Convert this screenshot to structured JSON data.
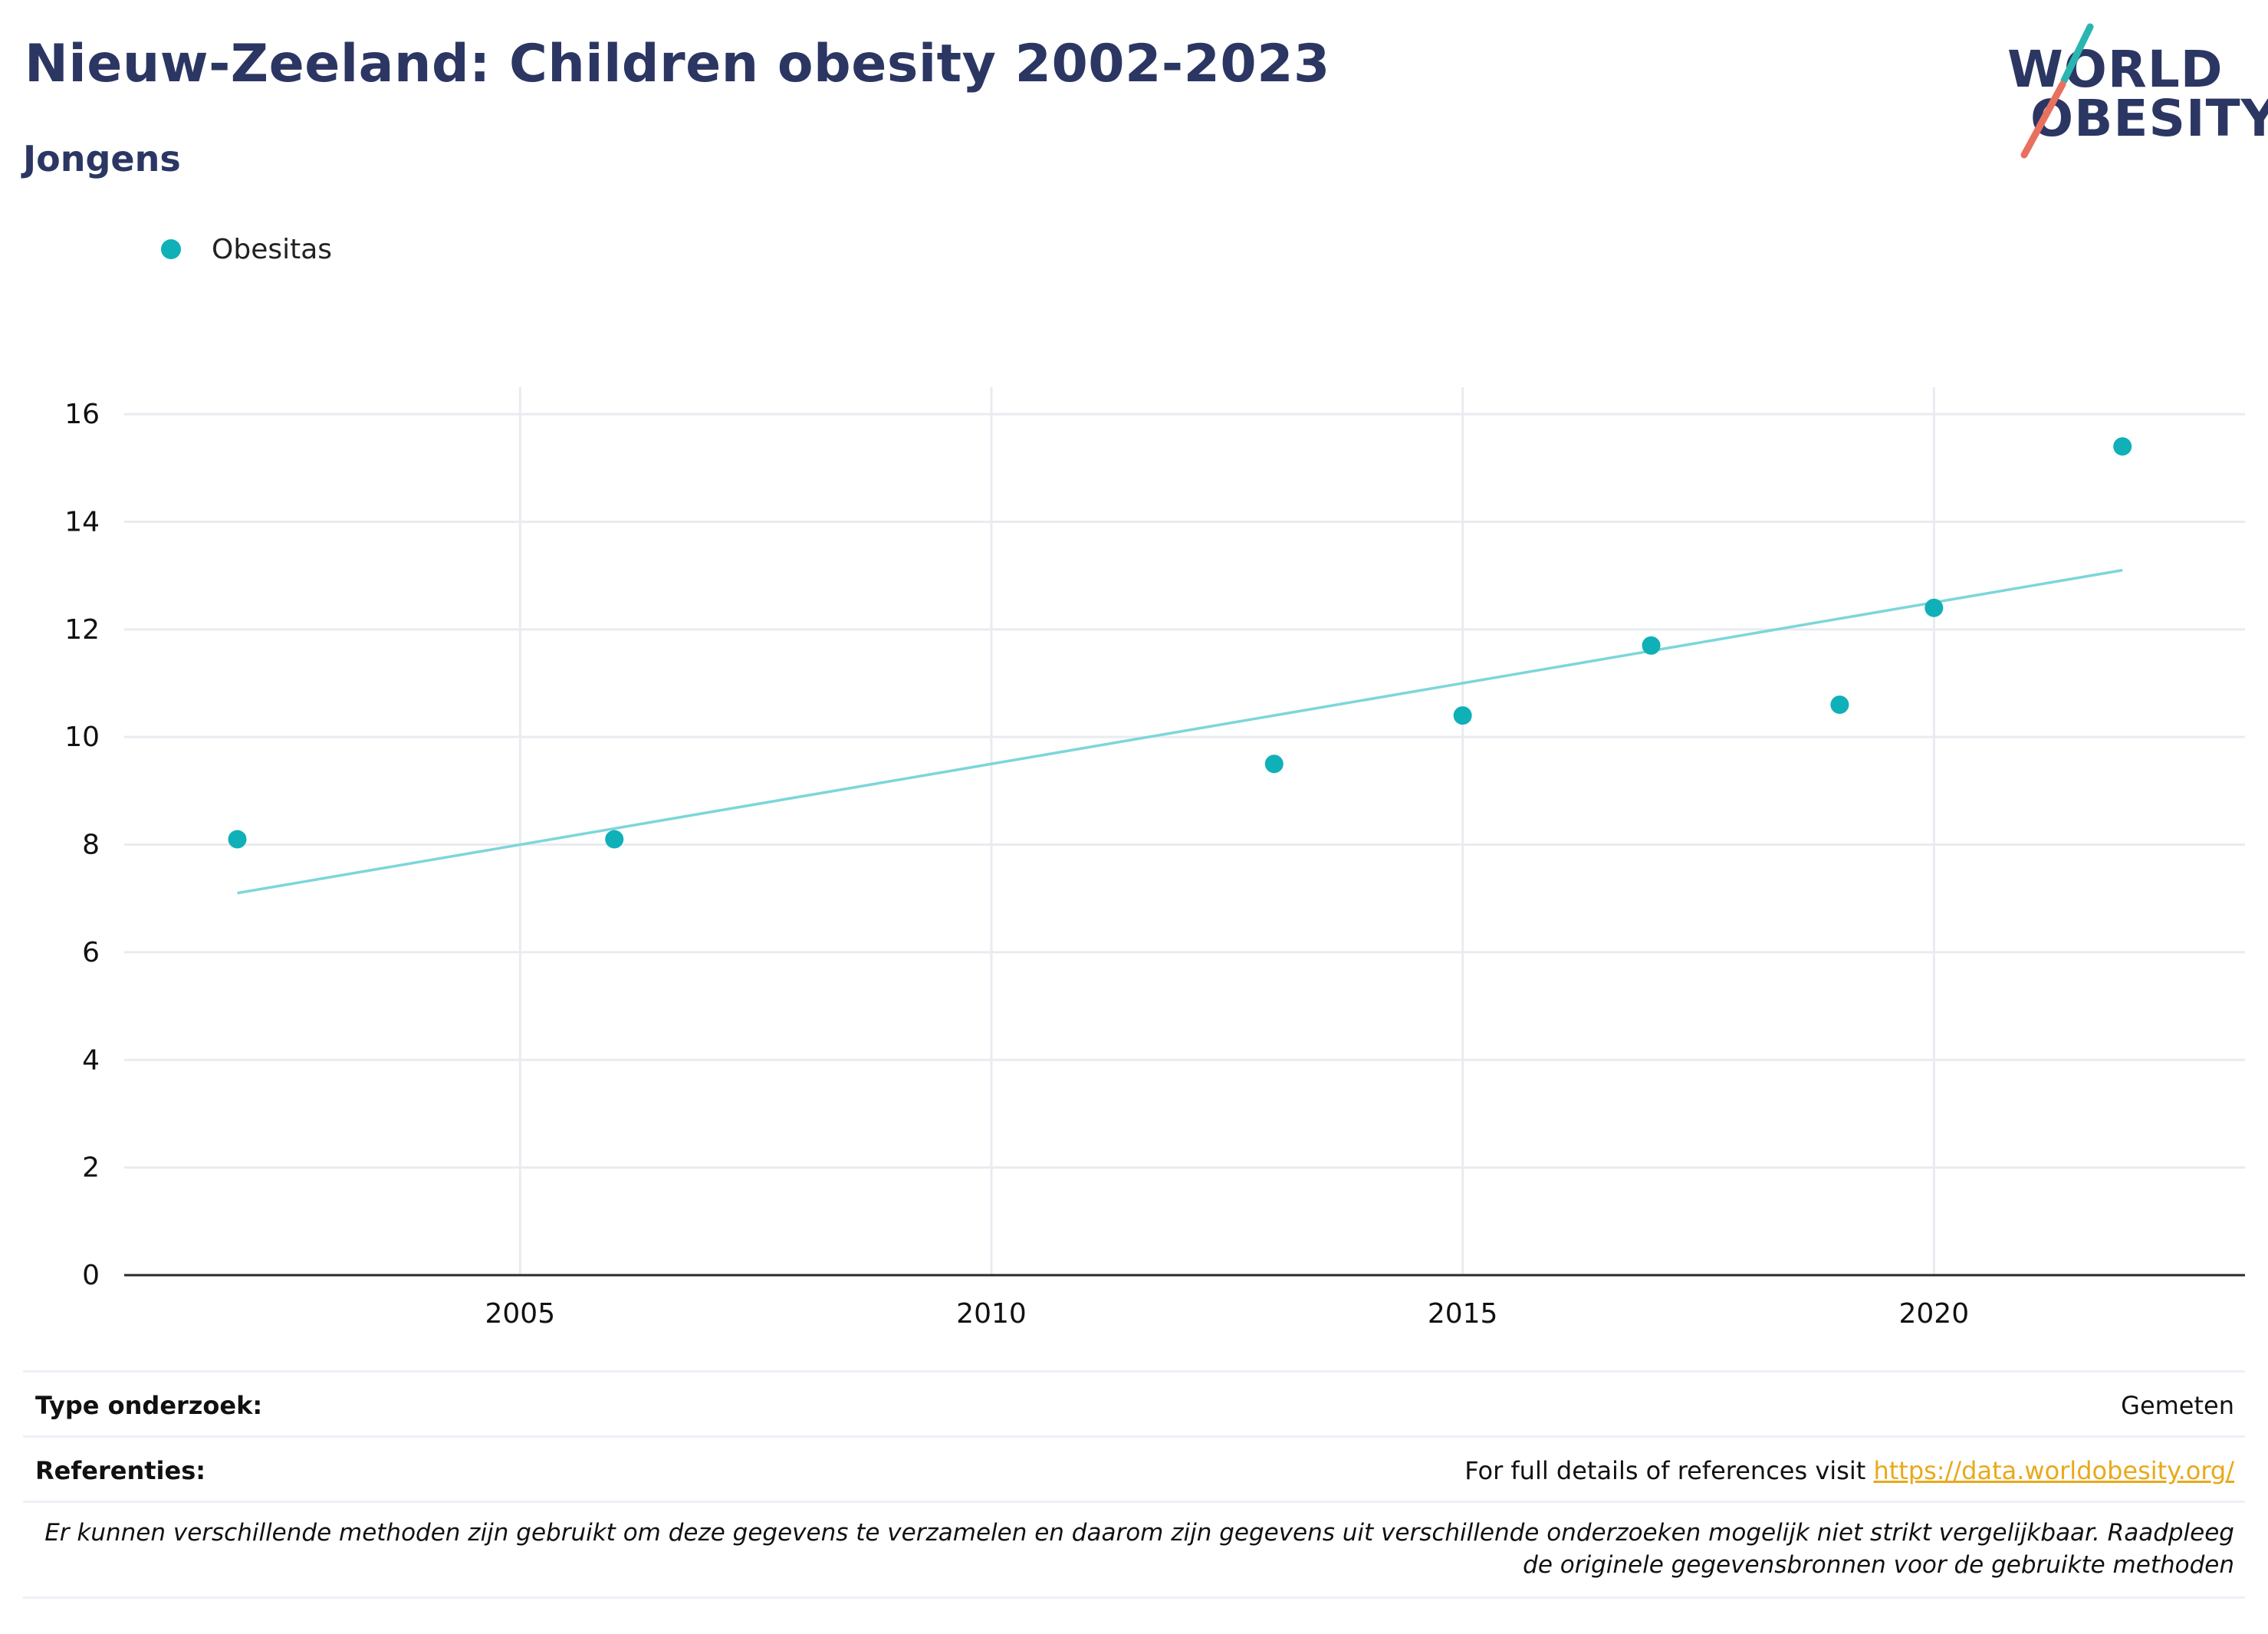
{
  "header": {
    "title": "Nieuw-Zeeland: Children obesity 2002-2023",
    "subtitle": "Jongens"
  },
  "logo": {
    "line1": "WORLD",
    "line2": "OBESITY",
    "slash_top_color": "#2ab5b0",
    "slash_bottom_color": "#e8705e"
  },
  "legend": {
    "items": [
      {
        "label": "Obesitas",
        "color": "#0fb0b8"
      }
    ]
  },
  "chart_data": {
    "type": "scatter",
    "title": "",
    "xlabel": "",
    "ylabel": "",
    "xlim": [
      2000.8,
      2023.3
    ],
    "ylim": [
      0,
      16.5
    ],
    "x_ticks": [
      2005,
      2010,
      2015,
      2020
    ],
    "y_ticks": [
      0,
      2,
      4,
      6,
      8,
      10,
      12,
      14,
      16
    ],
    "grid": true,
    "legend_position": "top-left",
    "series": [
      {
        "name": "Obesitas",
        "color": "#0fb0b8",
        "x": [
          2002,
          2006,
          2013,
          2015,
          2017,
          2019,
          2020,
          2022
        ],
        "y": [
          8.1,
          8.1,
          9.5,
          10.4,
          11.7,
          10.6,
          12.4,
          15.4
        ]
      }
    ],
    "trendline": {
      "color": "#7dd6d9",
      "x": [
        2002,
        2022
      ],
      "y": [
        7.1,
        13.1
      ]
    }
  },
  "info": {
    "survey_type_label": "Type onderzoek:",
    "survey_type_value": "Gemeten",
    "references_label": "Referenties:",
    "references_text": "For full details of references visit ",
    "references_link": "https://data.worldobesity.org/",
    "disclaimer_line1": "Er kunnen verschillende methoden zijn gebruikt om deze gegevens te verzamelen en daarom zijn gegevens uit verschillende onderzoeken mogelijk niet strikt vergelijkbaar. Raadpleeg",
    "disclaimer_line2": "de originele gegevensbronnen voor de gebruikte methoden"
  }
}
